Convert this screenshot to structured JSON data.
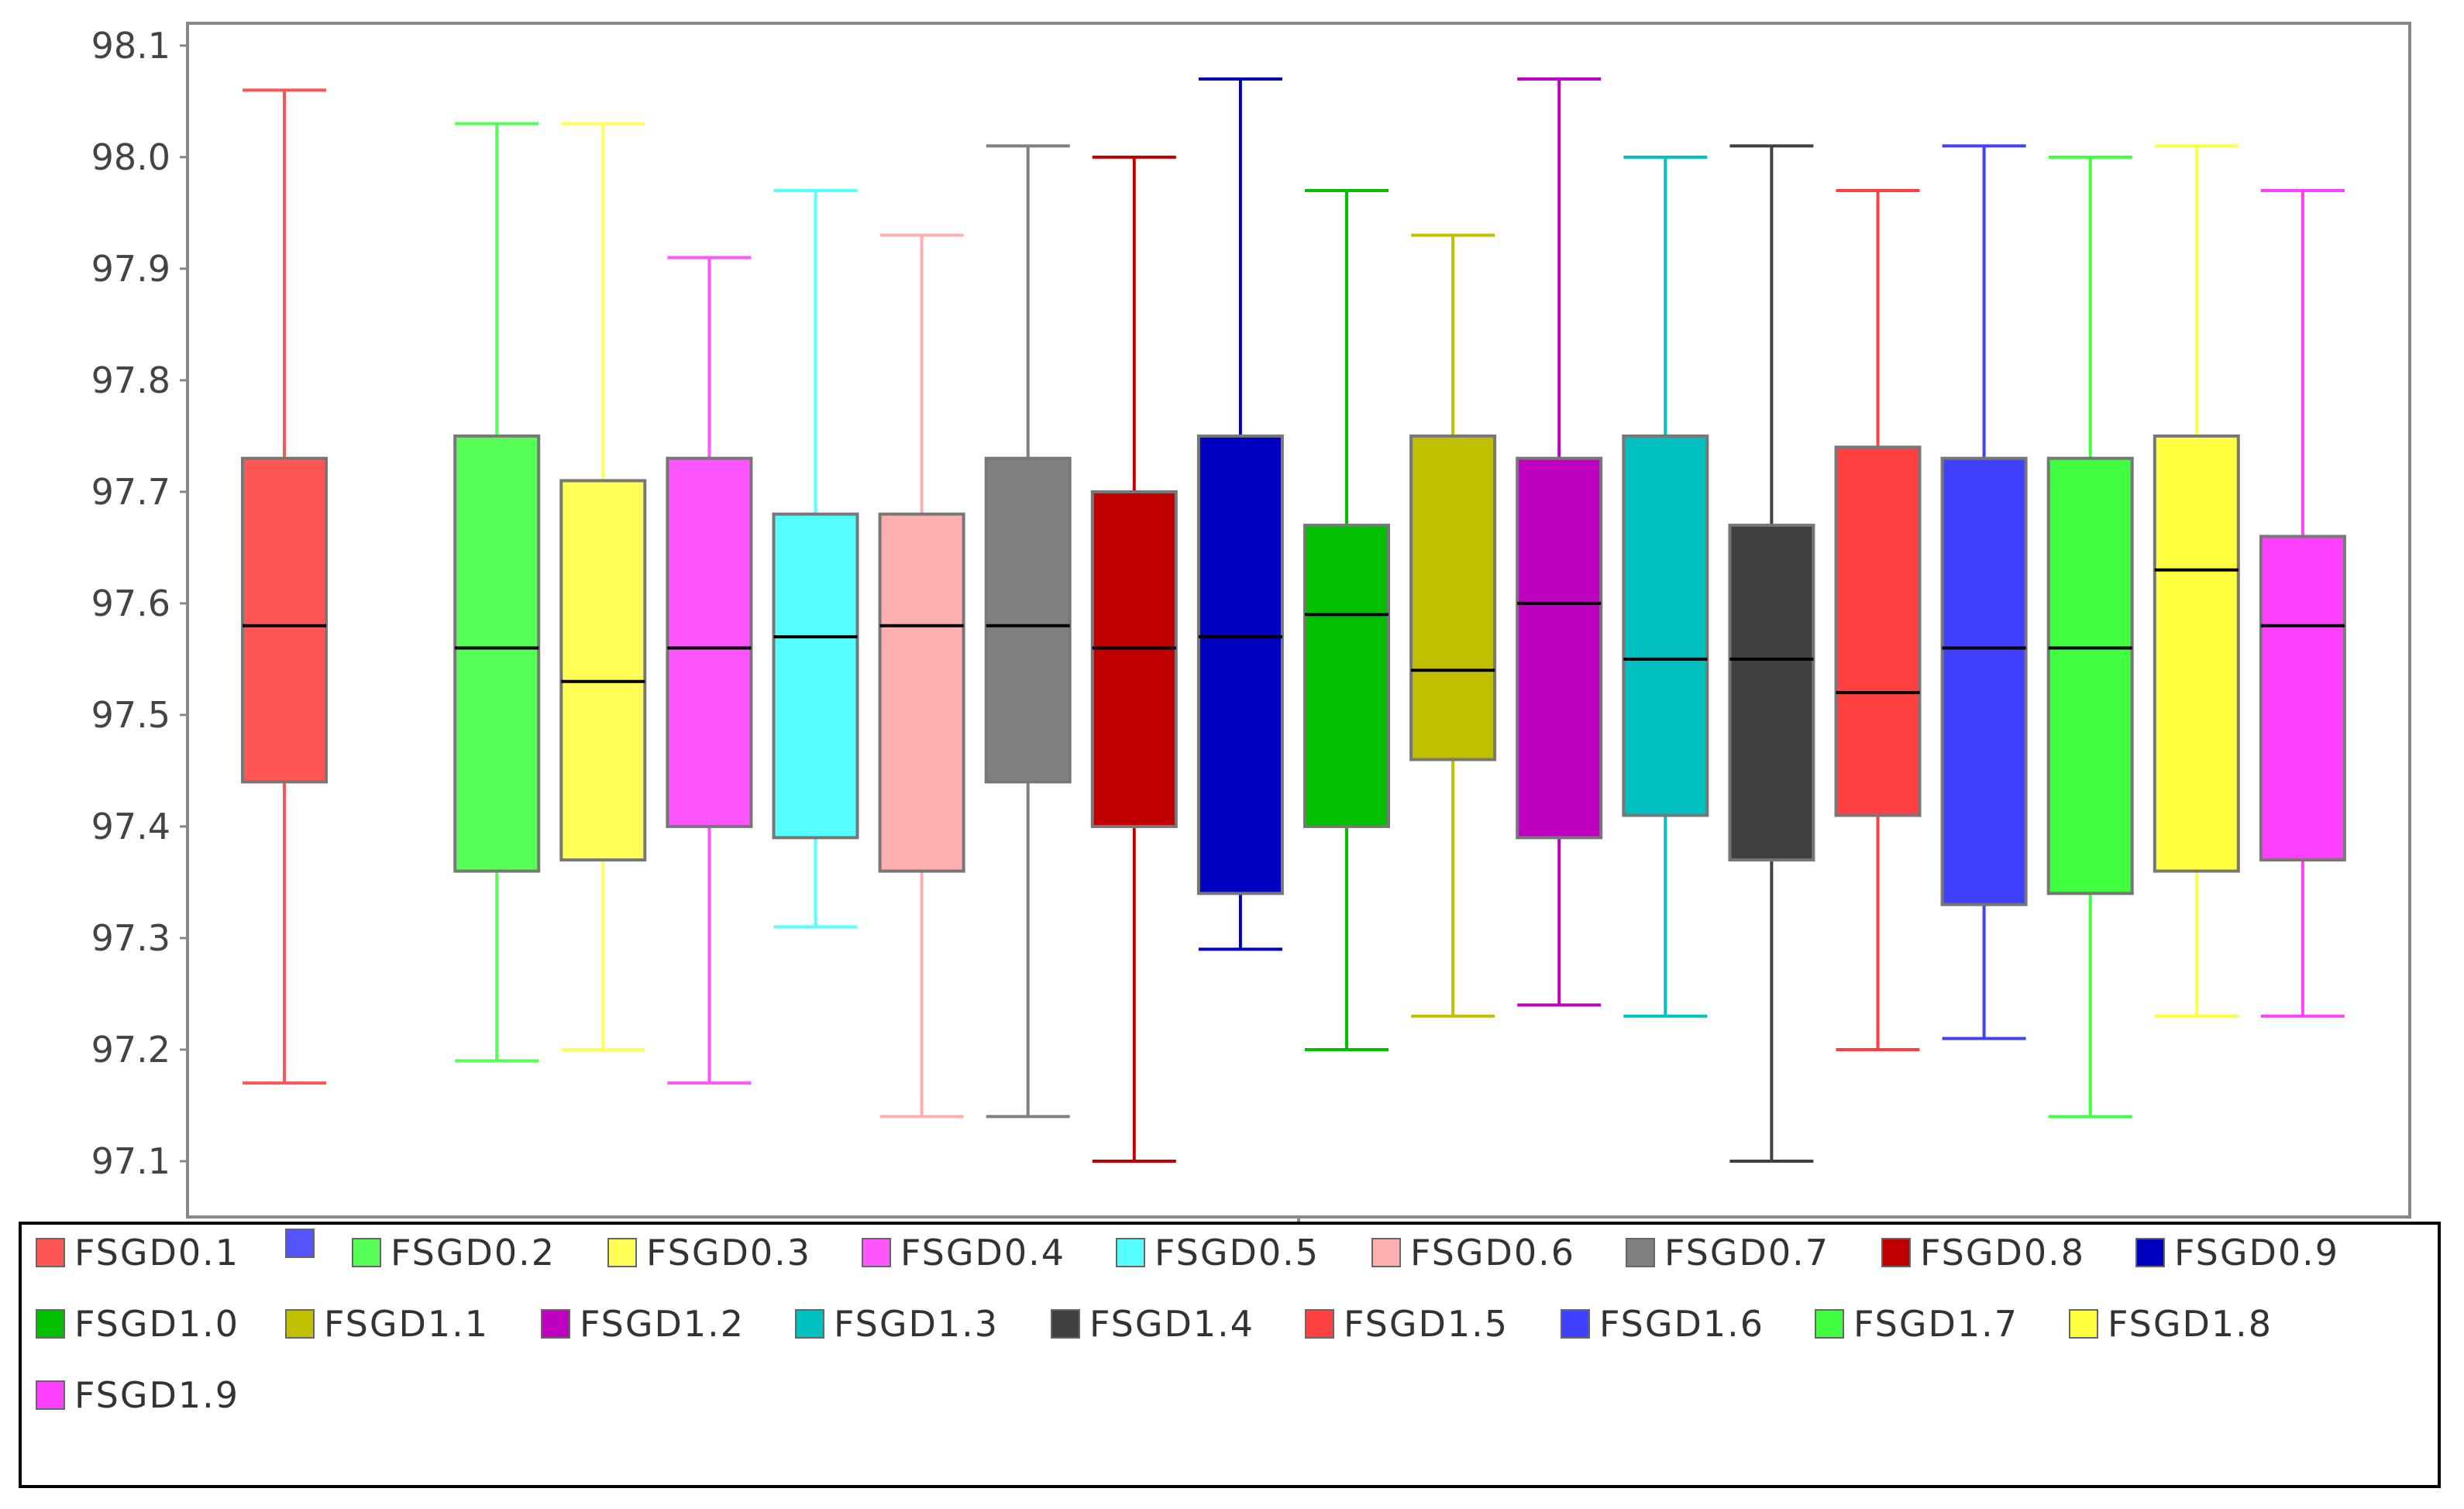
{
  "chart_data": {
    "type": "box",
    "title": "",
    "xlabel": "",
    "ylabel": "",
    "ylim": [
      97.05,
      98.12
    ],
    "yticks": [
      "97.1",
      "97.2",
      "97.3",
      "97.4",
      "97.5",
      "97.6",
      "97.7",
      "97.8",
      "97.9",
      "98.0",
      "98.1"
    ],
    "grid": false,
    "legend_position": "bottom",
    "series": [
      {
        "name": "FSGD0.1",
        "color": "#ff5555",
        "min": 97.17,
        "q1": 97.44,
        "median": 97.58,
        "q3": 97.73,
        "max": 98.06
      },
      {
        "name": "",
        "color": "#5555ff",
        "empty": true
      },
      {
        "name": "FSGD0.2",
        "color": "#55ff55",
        "min": 97.19,
        "q1": 97.36,
        "median": 97.56,
        "q3": 97.75,
        "max": 98.03
      },
      {
        "name": "FSGD0.3",
        "color": "#ffff55",
        "min": 97.2,
        "q1": 97.37,
        "median": 97.53,
        "q3": 97.71,
        "max": 98.03
      },
      {
        "name": "FSGD0.4",
        "color": "#ff55ff",
        "min": 97.17,
        "q1": 97.4,
        "median": 97.56,
        "q3": 97.73,
        "max": 97.91
      },
      {
        "name": "FSGD0.5",
        "color": "#55ffff",
        "min": 97.31,
        "q1": 97.39,
        "median": 97.57,
        "q3": 97.68,
        "max": 97.97
      },
      {
        "name": "FSGD0.6",
        "color": "#ffafaf",
        "min": 97.14,
        "q1": 97.36,
        "median": 97.58,
        "q3": 97.68,
        "max": 97.93
      },
      {
        "name": "FSGD0.7",
        "color": "#808080",
        "min": 97.14,
        "q1": 97.44,
        "median": 97.58,
        "q3": 97.73,
        "max": 98.01
      },
      {
        "name": "FSGD0.8",
        "color": "#c00000",
        "min": 97.1,
        "q1": 97.4,
        "median": 97.56,
        "q3": 97.7,
        "max": 98.0
      },
      {
        "name": "FSGD0.9",
        "color": "#0000c0",
        "min": 97.29,
        "q1": 97.34,
        "median": 97.57,
        "q3": 97.75,
        "max": 98.07
      },
      {
        "name": "FSGD1.0",
        "color": "#00c000",
        "min": 97.2,
        "q1": 97.4,
        "median": 97.59,
        "q3": 97.67,
        "max": 97.97
      },
      {
        "name": "FSGD1.1",
        "color": "#c0c000",
        "min": 97.23,
        "q1": 97.46,
        "median": 97.54,
        "q3": 97.75,
        "max": 97.93
      },
      {
        "name": "FSGD1.2",
        "color": "#c000c0",
        "min": 97.24,
        "q1": 97.39,
        "median": 97.6,
        "q3": 97.73,
        "max": 98.07
      },
      {
        "name": "FSGD1.3",
        "color": "#00c0c0",
        "min": 97.23,
        "q1": 97.41,
        "median": 97.55,
        "q3": 97.75,
        "max": 98.0
      },
      {
        "name": "FSGD1.4",
        "color": "#404040",
        "min": 97.1,
        "q1": 97.37,
        "median": 97.55,
        "q3": 97.67,
        "max": 98.01
      },
      {
        "name": "FSGD1.5",
        "color": "#ff4040",
        "min": 97.2,
        "q1": 97.41,
        "median": 97.52,
        "q3": 97.74,
        "max": 97.97
      },
      {
        "name": "FSGD1.6",
        "color": "#4040ff",
        "min": 97.21,
        "q1": 97.33,
        "median": 97.56,
        "q3": 97.73,
        "max": 98.01
      },
      {
        "name": "FSGD1.7",
        "color": "#40ff40",
        "min": 97.14,
        "q1": 97.34,
        "median": 97.56,
        "q3": 97.73,
        "max": 98.0
      },
      {
        "name": "FSGD1.8",
        "color": "#ffff40",
        "min": 97.23,
        "q1": 97.36,
        "median": 97.63,
        "q3": 97.75,
        "max": 98.01
      },
      {
        "name": "FSGD1.9",
        "color": "#ff40ff",
        "min": 97.23,
        "q1": 97.37,
        "median": 97.58,
        "q3": 97.66,
        "max": 97.97
      }
    ]
  },
  "colors": {
    "axis": "#888888",
    "frame": "#888888",
    "median": "#000000",
    "box_border": "#777777"
  }
}
